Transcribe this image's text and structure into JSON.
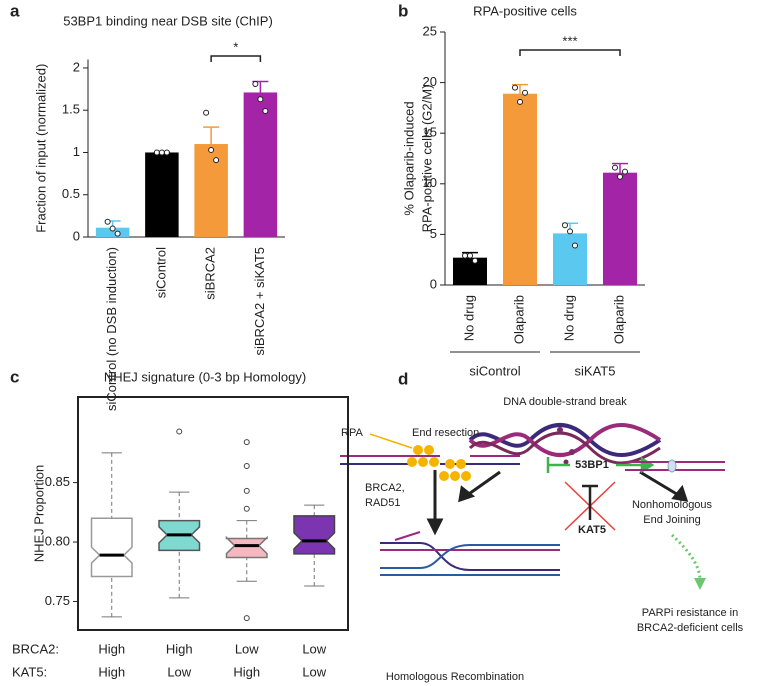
{
  "chart_data": [
    {
      "type": "bar",
      "panel": "a",
      "title": "53BP1 binding near DSB site (ChIP)",
      "ylabel": [
        "Fraction of input (normalized)"
      ],
      "categories": [
        "siControl (no DSB induction)",
        "siControl",
        "siBRCA2",
        "siBRCA2 + siKAT5"
      ],
      "values": [
        0.11,
        1.0,
        1.1,
        1.71
      ],
      "errors": [
        0.08,
        0,
        0.2,
        0.13
      ],
      "points": [
        [
          0.18,
          0.1,
          0.04
        ],
        [
          1.0,
          1.0,
          1.0
        ],
        [
          1.47,
          1.03,
          0.91
        ],
        [
          1.81,
          1.63,
          1.49
        ]
      ],
      "colors": [
        "#5bc8f0",
        "#000000",
        "#f59a3a",
        "#a424a8"
      ],
      "ylim": [
        0,
        2.1
      ],
      "yticks": [
        0,
        0.5,
        1,
        1.5,
        2
      ],
      "significance": {
        "label": "*",
        "between": [
          2,
          3
        ]
      }
    },
    {
      "type": "bar",
      "panel": "b",
      "title": "RPA-positive cells",
      "ylabel": [
        "% Olaparib-induced",
        "RPA-positive cells (G2/M)"
      ],
      "categories": [
        "No drug",
        "Olaparib",
        "No drug",
        "Olaparib"
      ],
      "values": [
        2.7,
        18.9,
        5.1,
        11.1
      ],
      "errors": [
        0.5,
        0.9,
        1.0,
        0.9
      ],
      "points": [
        [
          2.9,
          2.9,
          2.4
        ],
        [
          19.5,
          18.1,
          19.0
        ],
        [
          5.9,
          5.3,
          3.9
        ],
        [
          11.6,
          10.7,
          11.2
        ]
      ],
      "colors": [
        "#000000",
        "#f59a3a",
        "#5bc8f0",
        "#a424a8"
      ],
      "ylim": [
        0,
        25
      ],
      "yticks": [
        0,
        5,
        10,
        15,
        20,
        25
      ],
      "groups": [
        {
          "name": "siControl",
          "span": [
            0,
            1
          ]
        },
        {
          "name": "siKAT5",
          "span": [
            2,
            3
          ]
        }
      ],
      "significance": {
        "label": "***",
        "between": [
          1,
          3
        ]
      }
    },
    {
      "type": "box",
      "panel": "c",
      "title": "NHEJ signature (0-3 bp Homology)",
      "ylabel": [
        "NHEJ Proportion"
      ],
      "boxes": [
        {
          "low": 0.737,
          "q1": 0.771,
          "median": 0.789,
          "q3": 0.82,
          "high": 0.875,
          "outliers": []
        },
        {
          "low": 0.753,
          "q1": 0.793,
          "median": 0.806,
          "q3": 0.818,
          "high": 0.842,
          "outliers": [
            0.893
          ]
        },
        {
          "low": 0.767,
          "q1": 0.787,
          "median": 0.797,
          "q3": 0.803,
          "high": 0.818,
          "outliers": [
            0.884,
            0.864,
            0.843,
            0.828,
            0.736
          ]
        },
        {
          "low": 0.763,
          "q1": 0.79,
          "median": 0.801,
          "q3": 0.822,
          "high": 0.831,
          "outliers": []
        }
      ],
      "colors": [
        "#ffffff",
        "#7fd9d0",
        "#f5b8c0",
        "#7b35b0"
      ],
      "edge_colors": [
        "#999999",
        "#555555",
        "#777777",
        "#444444"
      ],
      "factors": [
        {
          "name": "BRCA2:",
          "levels": [
            "High",
            "High",
            "Low",
            "Low"
          ]
        },
        {
          "name": "KAT5:",
          "levels": [
            "High",
            "Low",
            "High",
            "Low"
          ]
        }
      ],
      "ylim": [
        0.726,
        0.922
      ],
      "yticks": [
        {
          "value": 0.75,
          "label": "0.75"
        },
        {
          "value": 0.8,
          "label": "0.80"
        },
        {
          "value": 0.85,
          "label": "0.85"
        }
      ]
    }
  ],
  "diagram": {
    "panel": "d",
    "labels": {
      "dsb": "DNA double-strand break",
      "rpa": "RPA",
      "resection": "End resection",
      "brca2": "BRCA2,",
      "rad51": "RAD51",
      "bp53": "53BP1",
      "kat5": "KAT5",
      "nh1": "Nonhomologous",
      "nh2": "End Joining",
      "hr": "Homologous Recombination",
      "parp1": "PARPi resistance in",
      "parp2": "BRCA2-deficient cells"
    }
  }
}
